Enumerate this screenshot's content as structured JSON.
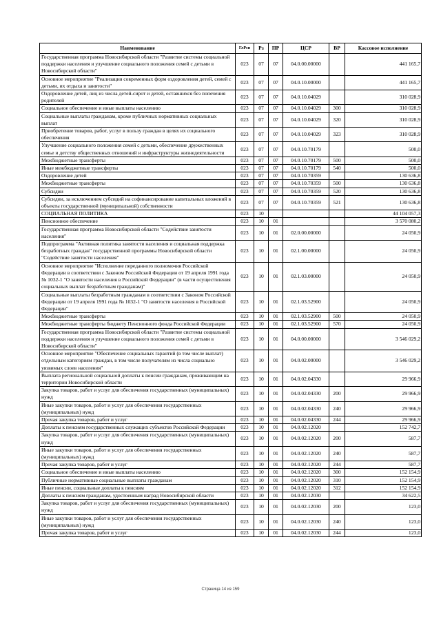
{
  "table": {
    "headers": [
      "Наименование",
      "ГлРсп",
      "Рз",
      "ПР",
      "ЦСР",
      "ВР",
      "Кассовое исполнение"
    ],
    "rows": [
      [
        "Государственная программа Новосибирской области \"Развитие системы социальной поддержки населения и улучшение социального положения семей с детьми в Новосибирской области\"",
        "023",
        "07",
        "07",
        "04.0.00.00000",
        "",
        "441 165,7"
      ],
      [
        "Основное мероприятие \"Реализация современных форм оздоровления детей, семей с детьми, их отдыха и занятости\"",
        "023",
        "07",
        "07",
        "04.0.10.00000",
        "",
        "441 165,7"
      ],
      [
        "Оздоровление детей, лиц из числа детей-сирот и детей, оставшихся без попечения родителей",
        "023",
        "07",
        "07",
        "04.0.10.04029",
        "",
        "310 028,9"
      ],
      [
        "Социальное обеспечение и иные выплаты населению",
        "023",
        "07",
        "07",
        "04.0.10.04029",
        "300",
        "310 028,9"
      ],
      [
        "Социальные выплаты гражданам, кроме публичных нормативных социальных выплат",
        "023",
        "07",
        "07",
        "04.0.10.04029",
        "320",
        "310 028,9"
      ],
      [
        "Приобретение товаров, работ, услуг в пользу граждан в целях их социального обеспечения",
        "023",
        "07",
        "07",
        "04.0.10.04029",
        "323",
        "310 028,9"
      ],
      [
        "Улучшение социального положения семей с детьми, обеспечение дружественных семье и детству общественных отношений и инфраструктуры жизнедеятельности",
        "023",
        "07",
        "07",
        "04.0.10.70179",
        "",
        "500,0"
      ],
      [
        "Межбюджетные трансферты",
        "023",
        "07",
        "07",
        "04.0.10.70179",
        "500",
        "500,0"
      ],
      [
        "Иные межбюджетные трансферты",
        "023",
        "07",
        "07",
        "04.0.10.70179",
        "540",
        "500,0"
      ],
      [
        "Оздоровление детей",
        "023",
        "07",
        "07",
        "04.0.10.70359",
        "",
        "130 636,8"
      ],
      [
        "Межбюджетные трансферты",
        "023",
        "07",
        "07",
        "04.0.10.70359",
        "500",
        "130 636,8"
      ],
      [
        "Субсидии",
        "023",
        "07",
        "07",
        "04.0.10.70359",
        "520",
        "130 636,8"
      ],
      [
        "Субсидии, за исключением субсидий на софинансирование капитальных вложений в объекты государственной (муниципальной) собственности",
        "023",
        "07",
        "07",
        "04.0.10.70359",
        "521",
        "130 636,8"
      ],
      [
        "СОЦИАЛЬНАЯ ПОЛИТИКА",
        "023",
        "10",
        "",
        "",
        "",
        "44 104 057,3"
      ],
      [
        "Пенсионное обеспечение",
        "023",
        "10",
        "01",
        "",
        "",
        "3 570 080,2"
      ],
      [
        "Государственная программа Новосибирской области \"Содействие занятости населения\"",
        "023",
        "10",
        "01",
        "02.0.00.00000",
        "",
        "24 050,9"
      ],
      [
        "Подпрограмма \"Активная политика занятости населения и социальная поддержка безработных граждан\" государственной программы Новосибирской области \"Содействие занятости населения\"",
        "023",
        "10",
        "01",
        "02.1.00.00000",
        "",
        "24 050,9"
      ],
      [
        "Основное мероприятие \"Исполнение переданного полномочия Российской Федерации в соответствии с Законом Российской Федерации от 19 апреля 1991 года № 1032-1 \"О занятости населения в Российской Федерации\" (в части осуществления социальных выплат безработным гражданам)\"",
        "023",
        "10",
        "01",
        "02.1.03.00000",
        "",
        "24 050,9"
      ],
      [
        "Социальные выплаты безработным гражданам в соответствии с Законом Российской Федерации от 19 апреля 1991 года № 1032-1 \"О занятости населения в Российской Федерации\"",
        "023",
        "10",
        "01",
        "02.1.03.52900",
        "",
        "24 050,9"
      ],
      [
        "Межбюджетные трансферты",
        "023",
        "10",
        "01",
        "02.1.03.52900",
        "500",
        "24 050,9"
      ],
      [
        "Межбюджетные трансферты бюджету Пенсионного фонда Российской Федерации",
        "023",
        "10",
        "01",
        "02.1.03.52900",
        "570",
        "24 050,9"
      ],
      [
        "Государственная программа Новосибирской области \"Развитие системы социальной поддержки населения и улучшение социального положения семей с детьми в Новосибирской области\"",
        "023",
        "10",
        "01",
        "04.0.00.00000",
        "",
        "3 546 029,2"
      ],
      [
        "Основное мероприятие \"Обеспечение социальных гарантий (в том числе выплат) отдельным категориям граждан, в том числе получателям из числа социально уязвимых слоев населения\"",
        "023",
        "10",
        "01",
        "04.0.02.00000",
        "",
        "3 546 029,2"
      ],
      [
        "Выплата региональной социальной доплаты к пенсии гражданам, проживающим на территории Новосибирской области",
        "023",
        "10",
        "01",
        "04.0.02.04330",
        "",
        "29 966,9"
      ],
      [
        "Закупка товаров, работ и услуг для обеспечения государственных (муниципальных) нужд",
        "023",
        "10",
        "01",
        "04.0.02.04330",
        "200",
        "29 966,9"
      ],
      [
        "Иные закупки товаров, работ и услуг для обеспечения государственных (муниципальных) нужд",
        "023",
        "10",
        "01",
        "04.0.02.04330",
        "240",
        "29 966,9"
      ],
      [
        "Прочая закупка товаров, работ и услуг",
        "023",
        "10",
        "01",
        "04.0.02.04330",
        "244",
        "29 966,9"
      ],
      [
        "Доплаты к пенсиям государственных служащих субъектов Российской Федерации",
        "023",
        "10",
        "01",
        "04.0.02.12020",
        "",
        "152 742,7"
      ],
      [
        "Закупка товаров, работ и услуг для обеспечения государственных (муниципальных) нужд",
        "023",
        "10",
        "01",
        "04.0.02.12020",
        "200",
        "587,7"
      ],
      [
        "Иные закупки товаров, работ и услуг для обеспечения государственных (муниципальных) нужд",
        "023",
        "10",
        "01",
        "04.0.02.12020",
        "240",
        "587,7"
      ],
      [
        "Прочая закупка товаров, работ и услуг",
        "023",
        "10",
        "01",
        "04.0.02.12020",
        "244",
        "587,7"
      ],
      [
        "Социальное обеспечение и иные выплаты населению",
        "023",
        "10",
        "01",
        "04.0.02.12020",
        "300",
        "152 154,9"
      ],
      [
        "Публичные нормативные социальные выплаты гражданам",
        "023",
        "10",
        "01",
        "04.0.02.12020",
        "310",
        "152 154,9"
      ],
      [
        "Иные пенсии, социальные доплаты к пенсиям",
        "023",
        "10",
        "01",
        "04.0.02.12020",
        "312",
        "152 154,9"
      ],
      [
        "Доплаты к пенсиям гражданам, удостоенным наград Новосибирской области",
        "023",
        "10",
        "01",
        "04.0.02.12030",
        "",
        "34 622,5"
      ],
      [
        "Закупка товаров, работ и услуг для обеспечения государственных (муниципальных) нужд",
        "023",
        "10",
        "01",
        "04.0.02.12030",
        "200",
        "123,0"
      ],
      [
        "Иные закупки товаров, работ и услуг для обеспечения государственных (муниципальных) нужд",
        "023",
        "10",
        "01",
        "04.0.02.12030",
        "240",
        "123,0"
      ],
      [
        "Прочая закупка товаров, работ и услуг",
        "023",
        "10",
        "01",
        "04.0.02.12030",
        "244",
        "123,0"
      ]
    ]
  },
  "footer": {
    "page_label": "Страница  14 из 159"
  }
}
